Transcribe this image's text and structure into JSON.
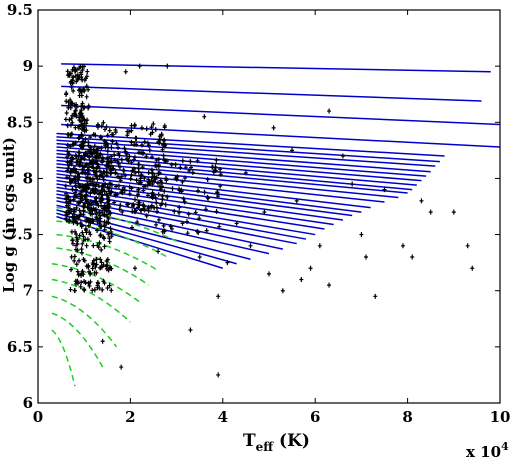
{
  "chart_data": {
    "type": "line",
    "title": "",
    "xlabel_main": "T",
    "xlabel_sub": "eff",
    "xlabel_unit": " (K)",
    "ylabel": "Log g (in cgs unit)",
    "x_multiplier": "x 10",
    "x_multiplier_exp": "4",
    "xlim": [
      0,
      10
    ],
    "ylim": [
      6,
      9.5
    ],
    "xticks": [
      0,
      2,
      4,
      6,
      8,
      10
    ],
    "xtick_labels": [
      "0",
      "2",
      "4",
      "6",
      "8",
      "10"
    ],
    "yticks": [
      6,
      6.5,
      7,
      7.5,
      8,
      8.5,
      9,
      9.5
    ],
    "ytick_labels": [
      "6",
      "6.5",
      "7",
      "7.5",
      "8",
      "8.5",
      "9",
      "9.5"
    ],
    "grid": false,
    "colors": {
      "blue_tracks": "#0000cc",
      "green_tracks": "#22cc22",
      "points": "#000000"
    },
    "blue_tracks": [
      {
        "x": [
          0.5,
          9.8
        ],
        "y": [
          9.02,
          8.95
        ]
      },
      {
        "x": [
          0.5,
          9.6
        ],
        "y": [
          8.82,
          8.69
        ]
      },
      {
        "x": [
          0.5,
          10.0
        ],
        "y": [
          8.65,
          8.48
        ]
      },
      {
        "x": [
          0.5,
          10.0
        ],
        "y": [
          8.48,
          8.28
        ]
      },
      {
        "x": [
          0.4,
          8.8
        ],
        "y": [
          8.4,
          8.2
        ]
      },
      {
        "x": [
          0.4,
          8.7
        ],
        "y": [
          8.37,
          8.15
        ]
      },
      {
        "x": [
          0.4,
          8.6
        ],
        "y": [
          8.34,
          8.11
        ]
      },
      {
        "x": [
          0.4,
          8.5
        ],
        "y": [
          8.31,
          8.06
        ]
      },
      {
        "x": [
          0.4,
          8.4
        ],
        "y": [
          8.28,
          8.02
        ]
      },
      {
        "x": [
          0.4,
          8.3
        ],
        "y": [
          8.25,
          7.98
        ]
      },
      {
        "x": [
          0.4,
          8.2
        ],
        "y": [
          8.22,
          7.94
        ]
      },
      {
        "x": [
          0.4,
          8.1
        ],
        "y": [
          8.19,
          7.9
        ]
      },
      {
        "x": [
          0.4,
          8.0
        ],
        "y": [
          8.16,
          7.87
        ]
      },
      {
        "x": [
          0.4,
          7.8
        ],
        "y": [
          8.13,
          7.83
        ]
      },
      {
        "x": [
          0.4,
          7.5
        ],
        "y": [
          8.1,
          7.79
        ]
      },
      {
        "x": [
          0.4,
          7.2
        ],
        "y": [
          8.07,
          7.74
        ]
      },
      {
        "x": [
          0.4,
          7.0
        ],
        "y": [
          8.04,
          7.7
        ]
      },
      {
        "x": [
          0.4,
          6.8
        ],
        "y": [
          8.01,
          7.67
        ]
      },
      {
        "x": [
          0.4,
          6.6
        ],
        "y": [
          7.98,
          7.63
        ]
      },
      {
        "x": [
          0.4,
          6.4
        ],
        "y": [
          7.95,
          7.59
        ]
      },
      {
        "x": [
          0.4,
          6.2
        ],
        "y": [
          7.92,
          7.55
        ]
      },
      {
        "x": [
          0.4,
          6.0
        ],
        "y": [
          7.89,
          7.5
        ]
      },
      {
        "x": [
          0.4,
          5.8
        ],
        "y": [
          7.86,
          7.46
        ]
      },
      {
        "x": [
          0.4,
          5.6
        ],
        "y": [
          7.83,
          7.42
        ]
      },
      {
        "x": [
          0.4,
          5.3
        ],
        "y": [
          7.8,
          7.37
        ]
      },
      {
        "x": [
          0.4,
          5.0
        ],
        "y": [
          7.76,
          7.33
        ]
      },
      {
        "x": [
          0.4,
          4.6
        ],
        "y": [
          7.72,
          7.28
        ]
      },
      {
        "x": [
          0.4,
          4.3
        ],
        "y": [
          7.69,
          7.24
        ]
      },
      {
        "x": [
          0.4,
          4.0
        ],
        "y": [
          7.66,
          7.2
        ]
      }
    ],
    "green_tracks": [
      {
        "x": [
          0.4,
          3.0
        ],
        "y": [
          7.74,
          7.44
        ]
      },
      {
        "x": [
          0.4,
          2.8
        ],
        "y": [
          7.62,
          7.3
        ]
      },
      {
        "x": [
          0.4,
          2.6
        ],
        "y": [
          7.5,
          7.18
        ]
      },
      {
        "x": [
          0.4,
          2.4
        ],
        "y": [
          7.38,
          7.05
        ]
      },
      {
        "x": [
          0.3,
          2.2
        ],
        "y": [
          7.24,
          6.9
        ]
      },
      {
        "x": [
          0.3,
          2.0
        ],
        "y": [
          7.1,
          6.72
        ]
      },
      {
        "x": [
          0.3,
          1.7
        ],
        "y": [
          6.95,
          6.5
        ]
      },
      {
        "x": [
          0.3,
          1.4
        ],
        "y": [
          6.8,
          6.32
        ]
      },
      {
        "x": [
          0.3,
          0.8
        ],
        "y": [
          6.65,
          6.15
        ]
      }
    ],
    "scatter_outliers": [
      {
        "x": 2.8,
        "y": 9.0
      },
      {
        "x": 2.2,
        "y": 9.0
      },
      {
        "x": 1.9,
        "y": 8.95
      },
      {
        "x": 3.6,
        "y": 8.55
      },
      {
        "x": 6.3,
        "y": 8.6
      },
      {
        "x": 5.1,
        "y": 8.45
      },
      {
        "x": 5.5,
        "y": 8.25
      },
      {
        "x": 6.6,
        "y": 8.2
      },
      {
        "x": 6.8,
        "y": 7.95
      },
      {
        "x": 7.5,
        "y": 7.9
      },
      {
        "x": 8.3,
        "y": 7.8
      },
      {
        "x": 8.5,
        "y": 7.7
      },
      {
        "x": 9.0,
        "y": 7.7
      },
      {
        "x": 9.3,
        "y": 7.4
      },
      {
        "x": 9.4,
        "y": 7.2
      },
      {
        "x": 7.9,
        "y": 7.4
      },
      {
        "x": 8.1,
        "y": 7.3
      },
      {
        "x": 7.0,
        "y": 7.5
      },
      {
        "x": 7.1,
        "y": 7.3
      },
      {
        "x": 6.1,
        "y": 7.4
      },
      {
        "x": 5.9,
        "y": 7.2
      },
      {
        "x": 5.7,
        "y": 7.1
      },
      {
        "x": 6.3,
        "y": 7.05
      },
      {
        "x": 5.3,
        "y": 7.0
      },
      {
        "x": 4.1,
        "y": 7.25
      },
      {
        "x": 4.6,
        "y": 7.4
      },
      {
        "x": 3.9,
        "y": 6.95
      },
      {
        "x": 7.3,
        "y": 6.95
      },
      {
        "x": 5.0,
        "y": 7.15
      },
      {
        "x": 3.3,
        "y": 6.65
      },
      {
        "x": 3.9,
        "y": 6.25
      },
      {
        "x": 1.8,
        "y": 6.32
      },
      {
        "x": 1.4,
        "y": 6.55
      },
      {
        "x": 4.3,
        "y": 7.6
      },
      {
        "x": 4.9,
        "y": 7.7
      },
      {
        "x": 5.6,
        "y": 7.8
      },
      {
        "x": 4.5,
        "y": 8.05
      },
      {
        "x": 3.2,
        "y": 8.1
      },
      {
        "x": 3.5,
        "y": 7.3
      },
      {
        "x": 2.6,
        "y": 7.35
      },
      {
        "x": 2.9,
        "y": 7.55
      },
      {
        "x": 2.1,
        "y": 7.2
      }
    ],
    "scatter_cluster": [
      {
        "x_range": [
          0.6,
          1.1
        ],
        "y_range": [
          8.3,
          9.0
        ],
        "count": 130
      },
      {
        "x_range": [
          0.6,
          1.6
        ],
        "y_range": [
          7.6,
          8.3
        ],
        "count": 320
      },
      {
        "x_range": [
          0.9,
          2.8
        ],
        "y_range": [
          7.7,
          8.5
        ],
        "count": 260
      },
      {
        "x_range": [
          0.7,
          1.6
        ],
        "y_range": [
          7.0,
          7.6
        ],
        "count": 130
      },
      {
        "x_range": [
          2.0,
          4.0
        ],
        "y_range": [
          7.5,
          8.2
        ],
        "count": 90
      }
    ]
  }
}
